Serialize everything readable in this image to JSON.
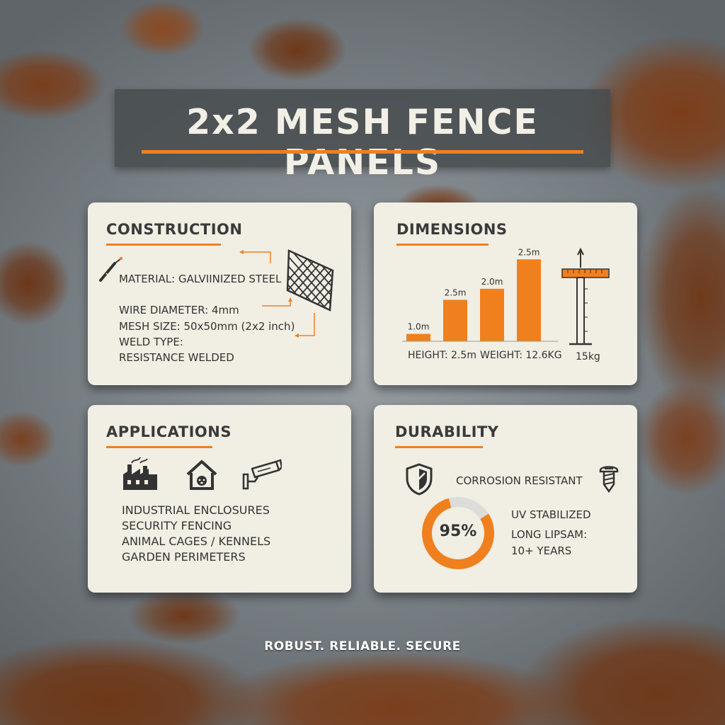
{
  "title": "2x2 MESH FENCE PANELS",
  "accent_color": "#f0801e",
  "construction": {
    "heading": "CONSTRUCTION",
    "material": "MATERIAL: GALVIINIZED STEEL",
    "wire_diameter": "WIRE DIAMETER: 4mm",
    "mesh_size": "MESH SIZE: 50x50mm (2x2 inch)",
    "weld_type_label": "WELD TYPE:",
    "weld_type_value": "RESISTANCE WELDED",
    "icons": [
      "welding-torch-icon",
      "mesh-panel-icon"
    ]
  },
  "dimensions": {
    "heading": "DIMENSIONS",
    "bar_labels": [
      "1.0m",
      "2.5m",
      "2.0m",
      "2.5m"
    ],
    "bar_levels": [
      0.08,
      0.45,
      0.57,
      0.89
    ],
    "height_text": "HEIGHT: 2.5m",
    "weight_text": "WEIGHT: 12.6KG",
    "post_weight": "15kg",
    "icons": [
      "fence-post-ruler-icon"
    ]
  },
  "applications": {
    "heading": "APPLICATIONS",
    "items": [
      "INDUSTRIAL ENCLOSURES",
      "SECURITY FENCING",
      "ANIMAL CAGES / KENNELS",
      "GARDEN PERIMETERS"
    ],
    "icons": [
      "factory-icon",
      "dog-house-icon",
      "security-camera-icon"
    ]
  },
  "durability": {
    "heading": "DURABILITY",
    "corrosion": "CORROSION RESISTANT",
    "gauge_value": "95%",
    "gauge_fraction": 0.95,
    "uv": "UV STABILIZED",
    "lifespan_1": "LONG LIPSAM:",
    "lifespan_2": "10+ YEARS",
    "icons": [
      "shield-icon",
      "screw-icon"
    ]
  },
  "footer": "ROBUST. RELIABLE. SECURE"
}
